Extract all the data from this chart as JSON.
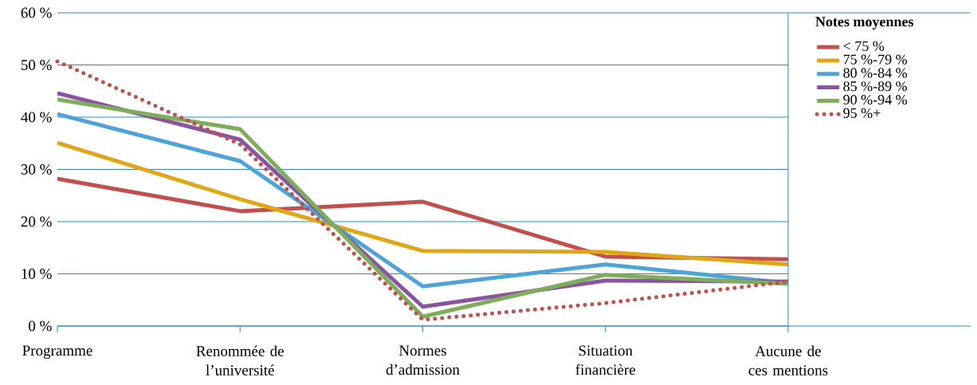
{
  "chart_data": {
    "type": "line",
    "categories": [
      "Programme",
      "Renommée de l’université",
      "Normes d’admission",
      "Situation financière",
      "Aucune de ces mentions"
    ],
    "series": [
      {
        "name": "< 75 %",
        "color": "#c0504d",
        "values": [
          28.2,
          22.0,
          23.8,
          13.3,
          12.8
        ]
      },
      {
        "name": "75 %-79 %",
        "color": "#dfa717",
        "values": [
          35.1,
          24.3,
          14.4,
          14.2,
          11.8
        ]
      },
      {
        "name": "80 %-84 %",
        "color": "#4ea3d8",
        "values": [
          40.6,
          31.6,
          7.6,
          11.8,
          8.2
        ]
      },
      {
        "name": "85 %-89 %",
        "color": "#8a55a0",
        "values": [
          44.6,
          35.7,
          3.7,
          8.7,
          8.5
        ]
      },
      {
        "name": "90 %-94 %",
        "color": "#7ead5c",
        "values": [
          43.4,
          37.7,
          1.8,
          9.8,
          8.1
        ]
      },
      {
        "name": "95 %+",
        "color": "#c0504d",
        "line_style": "dotted",
        "values": [
          50.7,
          34.8,
          1.2,
          4.4,
          8.5
        ]
      }
    ],
    "legend_title": "Notes moyennes",
    "ylim": [
      0,
      60
    ],
    "yticks": [
      {
        "value": 0,
        "label": "0 %"
      },
      {
        "value": 10,
        "label": "10 %"
      },
      {
        "value": 20,
        "label": "20 %"
      },
      {
        "value": 30,
        "label": "30 %"
      },
      {
        "value": 40,
        "label": "40 %"
      },
      {
        "value": 50,
        "label": "50 %"
      },
      {
        "value": 60,
        "label": "60 %"
      }
    ],
    "grid": "y",
    "legend": "right",
    "marker": "none",
    "line_style": "solid"
  }
}
